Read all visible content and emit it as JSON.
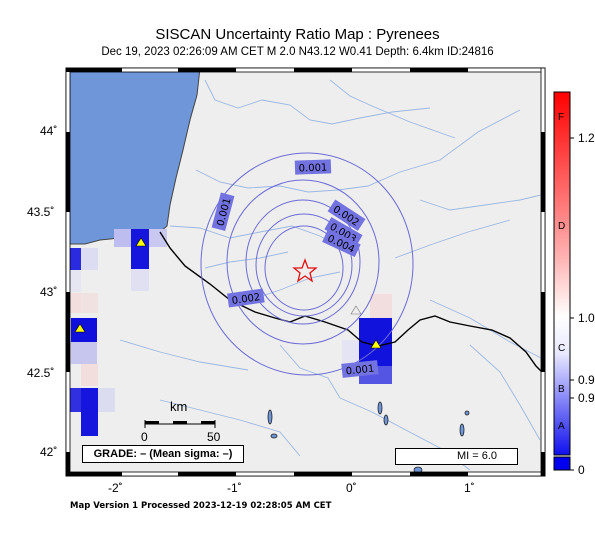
{
  "header": {
    "title": "SISCAN Uncertainty Ratio Map : Pyrenees",
    "subtitle": "Dec 19, 2023 02:26:09 AM CET   M 2.0   N43.12 W0.41   Depth: 6.4km   ID:24816"
  },
  "axes": {
    "x_ticks": [
      "-2˚",
      "-1˚",
      "0˚",
      "1˚"
    ],
    "y_ticks": [
      "44˚",
      "43.5˚",
      "43˚",
      "42.5˚",
      "42˚"
    ]
  },
  "contours": {
    "labels": [
      "0.001",
      "0.002",
      "0.003",
      "0.004",
      "0.001",
      "0.002",
      "0.001"
    ]
  },
  "legend": {
    "grade": "GRADE: – (Mean sigma: –)",
    "mi": "MI = 6.0",
    "scale_unit": "km",
    "scale_start": "0",
    "scale_end": "50"
  },
  "colorbar": {
    "grades": [
      "F",
      "D",
      "C",
      "B",
      "A"
    ],
    "values": [
      "1.2",
      "1.0",
      "0.9",
      "0.9",
      "0"
    ],
    "top_color": "#ff0000",
    "mid_color": "#ffffff",
    "bottom_color": "#0000ee"
  },
  "footer": "Map Version 1 Processed 2023-12-19 02:28:05 AM CET",
  "colors": {
    "land": "#eeeeee",
    "sea": "#6f96d8",
    "river": "#9ab7e3",
    "contour": "#6b6bd6",
    "label_box": "#7272e0",
    "star": "#e01010",
    "station": "#ffff00"
  }
}
